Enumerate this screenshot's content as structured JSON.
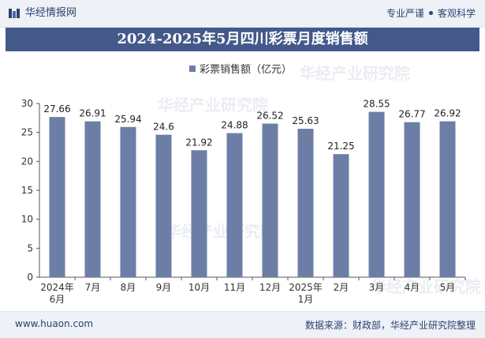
{
  "header": {
    "brand": "华经情报网",
    "tagline_left": "专业严谨",
    "tagline_right": "客观科学"
  },
  "title": "2024-2025年5月四川彩票月度销售额",
  "watermark": "华经产业研究院",
  "footer": {
    "url": "www.huaon.com",
    "source": "数据来源：财政部，华经产业研究院整理"
  },
  "colors": {
    "bar": "#6d7ea6",
    "title_bg": "#44598a",
    "brand": "#2b4170"
  },
  "chart_data": {
    "type": "bar",
    "title": "2024-2025年5月四川彩票月度销售额",
    "categories": [
      [
        "2024年",
        "6月"
      ],
      [
        "7月"
      ],
      [
        "8月"
      ],
      [
        "9月"
      ],
      [
        "10月"
      ],
      [
        "11月"
      ],
      [
        "12月"
      ],
      [
        "2025年",
        "1月"
      ],
      [
        "2月"
      ],
      [
        "3月"
      ],
      [
        "4月"
      ],
      [
        "5月"
      ]
    ],
    "series": [
      {
        "name": "彩票销售额（亿元）",
        "values": [
          27.66,
          26.91,
          25.94,
          24.6,
          21.92,
          24.88,
          26.52,
          25.63,
          21.25,
          28.55,
          26.77,
          26.92
        ],
        "labels": [
          "27.66",
          "26.91",
          "25.94",
          "24.6",
          "21.92",
          "24.88",
          "26.52",
          "25.63",
          "21.25",
          "28.55",
          "26.77",
          "26.92"
        ]
      }
    ],
    "ylim": [
      0,
      30
    ],
    "yticks": [
      0,
      5,
      10,
      15,
      20,
      25,
      30
    ],
    "grid": false,
    "legend": "top-center"
  }
}
